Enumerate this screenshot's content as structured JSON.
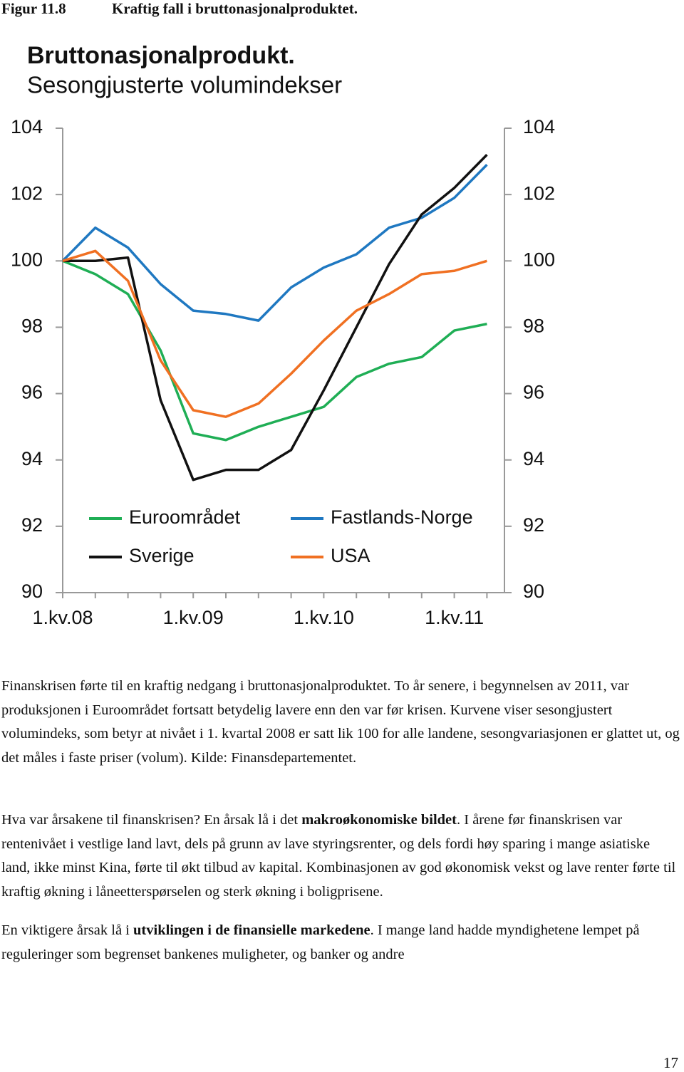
{
  "figure": {
    "label": "Figur 11.8",
    "caption": "Kraftig fall i bruttonasjonalproduktet."
  },
  "chart_data": {
    "type": "line",
    "title": "Bruttonasjonalprodukt.",
    "subtitle": "Sesongjusterte volumindekser",
    "categories": [
      "1.kv.08",
      null,
      null,
      null,
      "1.kv.09",
      null,
      null,
      null,
      "1.kv.10",
      null,
      null,
      null,
      "1.kv.11",
      null
    ],
    "series": [
      {
        "name": "Euroområdet",
        "color": "#1fae55",
        "values": [
          100,
          99.6,
          99.0,
          97.3,
          94.8,
          94.6,
          95.0,
          95.3,
          95.6,
          96.5,
          96.9,
          97.1,
          97.9,
          98.1
        ]
      },
      {
        "name": "Fastlands-Norge",
        "color": "#1f78c1",
        "values": [
          100,
          101.0,
          100.4,
          99.3,
          98.5,
          98.4,
          98.2,
          99.2,
          99.8,
          100.2,
          101.0,
          101.3,
          101.9,
          102.9
        ]
      },
      {
        "name": "Sverige",
        "color": "#111111",
        "values": [
          100,
          100.0,
          100.1,
          95.8,
          93.4,
          93.7,
          93.7,
          94.3,
          96.1,
          98.0,
          99.9,
          101.4,
          102.2,
          103.2
        ]
      },
      {
        "name": "USA",
        "color": "#f07022",
        "values": [
          100,
          100.3,
          99.4,
          97.0,
          95.5,
          95.3,
          95.7,
          96.6,
          97.6,
          98.5,
          99.0,
          99.6,
          99.7,
          100.0
        ]
      }
    ],
    "ylim": [
      90,
      104
    ],
    "yticks": [
      90,
      92,
      94,
      96,
      98,
      100,
      102,
      104
    ],
    "y2lim": [
      90,
      104
    ],
    "y2ticks": [
      90,
      92,
      94,
      96,
      98,
      100,
      102,
      104
    ],
    "grid": false,
    "legend": "bottom"
  },
  "paragraphs": [
    [
      {
        "text": "Finanskrisen førte til en kraftig nedgang i bruttonasjonalproduktet. To år senere, i begynnelsen av 2011, var produksjonen i Euroområdet fortsatt betydelig lavere enn den var før krisen. Kurvene viser sesongjustert volumindeks, som betyr at nivået i 1. kvartal 2008 er satt lik 100 for alle landene, sesongvariasjonen er glattet ut, og det måles i faste priser (volum). Kilde: Finansdepartementet."
      }
    ],
    [
      {
        "text": "Hva var årsakene til finanskrisen? En årsak lå i det "
      },
      {
        "text": "makroøkonomiske bildet",
        "bold": true
      },
      {
        "text": ". I årene før finanskrisen var rentenivået i vestlige land lavt, dels på grunn av lave styringsrenter, og dels fordi høy sparing i mange asiatiske land, ikke minst Kina, førte til økt tilbud av kapital. Kombinasjonen av god økonomisk vekst og lave renter førte til kraftig økning i låneetterspørselen og sterk økning i boligprisene."
      }
    ],
    [
      {
        "text": "En viktigere årsak lå i "
      },
      {
        "text": "utviklingen i de finansielle markedene",
        "bold": true
      },
      {
        "text": ". I mange land hadde myndighetene lempet på reguleringer som begrenset bankenes muligheter, og banker og andre"
      }
    ]
  ],
  "page_number": "17"
}
